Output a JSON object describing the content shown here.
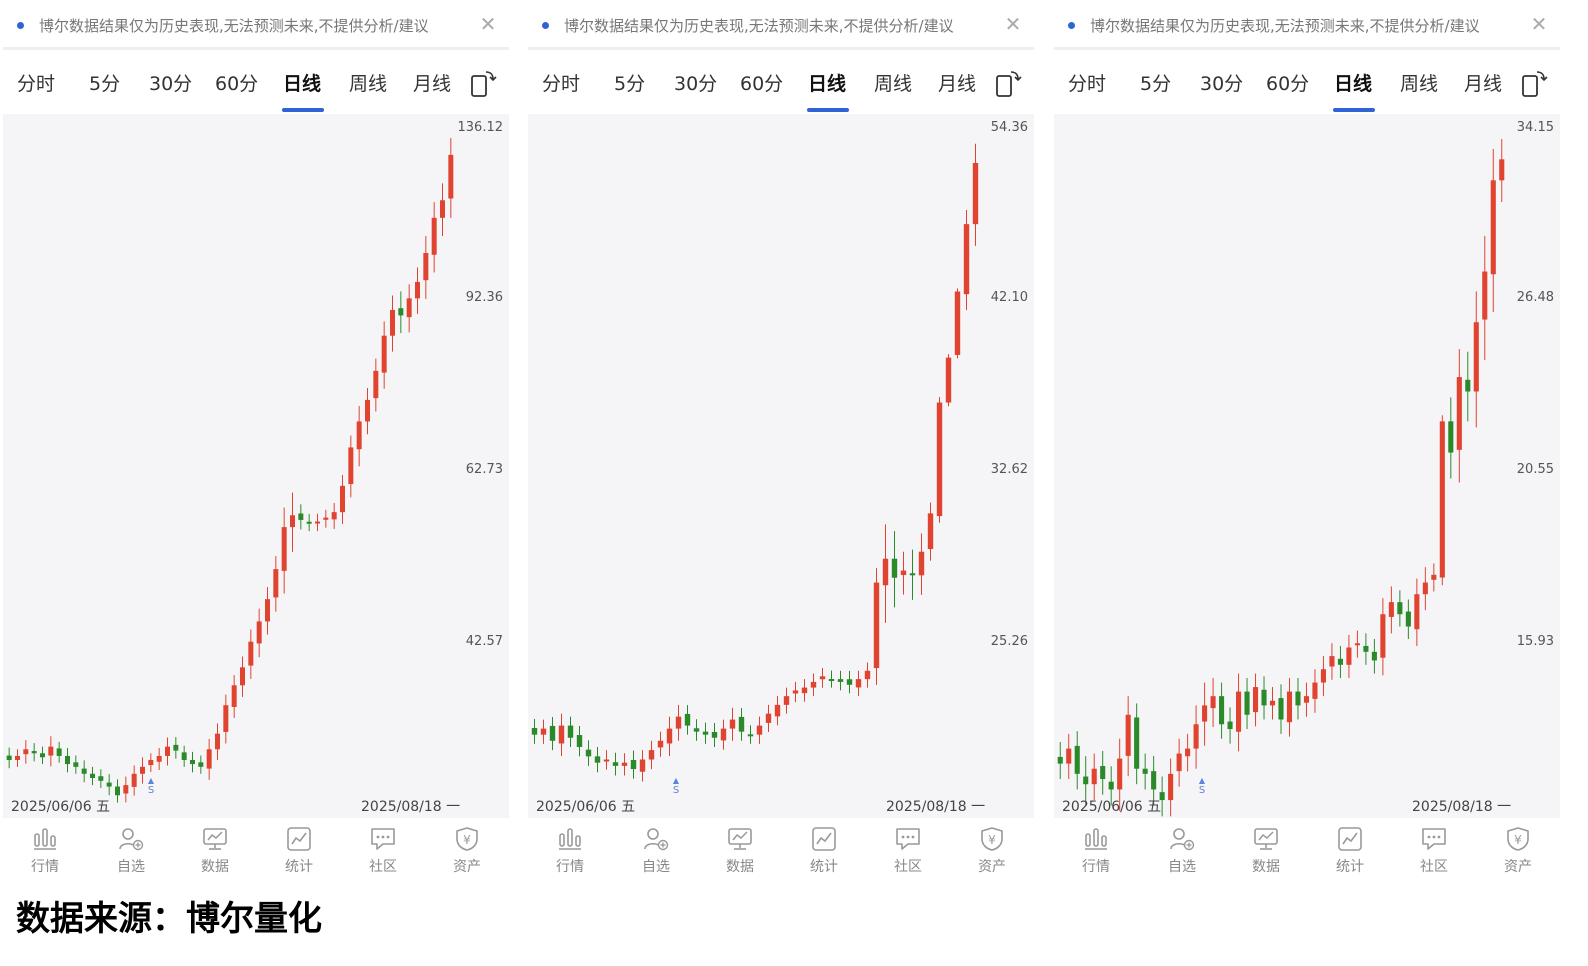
{
  "panels": [
    {
      "notice_text": "博尔数据结果仅为历史表现,无法预测未来,不提供分析/建议",
      "tabs": [
        "分时",
        "5分",
        "30分",
        "60分",
        "日线",
        "周线",
        "月线"
      ],
      "active_tab": "日线",
      "price_ticks": [
        "136.12",
        "92.36",
        "62.73",
        "42.57"
      ],
      "start_date": "2025/06/06 五",
      "end_date": "2025/08/18 一",
      "marker": "S",
      "nav": [
        "行情",
        "自选",
        "数据",
        "统计",
        "社区",
        "资产"
      ]
    },
    {
      "notice_text": "博尔数据结果仅为历史表现,无法预测未来,不提供分析/建议",
      "tabs": [
        "分时",
        "5分",
        "30分",
        "60分",
        "日线",
        "周线",
        "月线"
      ],
      "active_tab": "日线",
      "price_ticks": [
        "54.36",
        "42.10",
        "32.62",
        "25.26"
      ],
      "start_date": "2025/06/06 五",
      "end_date": "2025/08/18 一",
      "marker": "S",
      "nav": [
        "行情",
        "自选",
        "数据",
        "统计",
        "社区",
        "资产"
      ]
    },
    {
      "notice_text": "博尔数据结果仅为历史表现,无法预测未来,不提供分析/建议",
      "tabs": [
        "分时",
        "5分",
        "30分",
        "60分",
        "日线",
        "周线",
        "月线"
      ],
      "active_tab": "日线",
      "price_ticks": [
        "34.15",
        "26.48",
        "20.55",
        "15.93"
      ],
      "start_date": "2025/06/06 五",
      "end_date": "2025/08/18 一",
      "marker": "S",
      "nav": [
        "行情",
        "自选",
        "数据",
        "统计",
        "社区",
        "资产"
      ]
    }
  ],
  "source_text": "数据来源：博尔量化",
  "colors": {
    "up": "#e0432f",
    "down": "#2a8a2a",
    "accent": "#2f63d6"
  },
  "icons": [
    "close-icon",
    "rotate-screen-icon",
    "market-bars-icon",
    "watchlist-user-icon",
    "data-monitor-icon",
    "stats-chart-icon",
    "community-chat-icon",
    "assets-yuan-icon"
  ],
  "chart_data": [
    {
      "type": "candlestick",
      "scale": "log",
      "y_ticks": [
        136.12,
        92.36,
        62.73,
        42.57
      ],
      "x_range": [
        "2025/06/06",
        "2025/08/18"
      ],
      "close": [
        32.6,
        32.9,
        33.4,
        33.1,
        32.8,
        33.6,
        32.9,
        32.3,
        32.1,
        31.6,
        31.3,
        31.1,
        30.7,
        30.1,
        30.8,
        31.6,
        32.1,
        32.6,
        32.9,
        33.6,
        33.3,
        32.6,
        32.3,
        32.1,
        33.4,
        34.6,
        36.9,
        38.6,
        40.2,
        42.6,
        44.6,
        46.9,
        50.2,
        55.2,
        56.7,
        56.1,
        55.7,
        55.9,
        56.4,
        57.1,
        60.6,
        66.1,
        70.1,
        73.6,
        78.6,
        85.1,
        90.2,
        89.1,
        92.6,
        96.1,
        102.6,
        111.1,
        115.6,
        128.1
      ],
      "volatility": [
        0.6,
        0.5,
        0.7,
        0.6,
        0.5,
        0.8,
        0.5,
        0.6,
        0.5,
        0.6,
        0.5,
        0.5,
        0.6,
        0.5,
        0.6,
        0.6,
        0.7,
        0.5,
        0.6,
        0.7,
        0.6,
        0.5,
        0.6,
        0.5,
        0.8,
        0.8,
        0.9,
        0.9,
        1.0,
        1.2,
        1.3,
        1.3,
        1.5,
        2.5,
        3.0,
        1.2,
        1.0,
        1.0,
        1.0,
        1.2,
        1.5,
        1.8,
        2.5,
        2.0,
        2.2,
        2.8,
        3.0,
        3.5,
        3.0,
        3.2,
        4.0,
        4.0,
        4.5,
        5.0
      ]
    },
    {
      "type": "candlestick",
      "scale": "log",
      "y_ticks": [
        54.36,
        42.1,
        32.62,
        25.26
      ],
      "x_range": [
        "2025/06/06",
        "2025/08/18"
      ],
      "close": [
        22.0,
        22.2,
        21.8,
        22.3,
        21.9,
        21.6,
        21.3,
        21.1,
        21.2,
        21.0,
        21.1,
        20.9,
        21.2,
        21.5,
        21.8,
        22.2,
        22.6,
        22.3,
        22.1,
        22.0,
        21.9,
        22.2,
        22.5,
        22.1,
        22.0,
        22.3,
        22.7,
        23.0,
        23.3,
        23.5,
        23.6,
        23.8,
        24.0,
        23.9,
        23.8,
        23.7,
        23.9,
        24.2,
        27.6,
        28.6,
        27.8,
        28.1,
        27.9,
        28.9,
        30.6,
        36.1,
        38.6,
        42.6,
        47.1,
        51.6
      ],
      "volatility": [
        0.3,
        0.3,
        0.3,
        0.4,
        0.3,
        0.3,
        0.3,
        0.3,
        0.3,
        0.3,
        0.3,
        0.3,
        0.3,
        0.3,
        0.3,
        0.4,
        0.4,
        0.3,
        0.3,
        0.3,
        0.3,
        0.3,
        0.4,
        0.3,
        0.3,
        0.3,
        0.3,
        0.3,
        0.3,
        0.3,
        0.3,
        0.3,
        0.3,
        0.3,
        0.3,
        0.3,
        0.3,
        0.3,
        0.6,
        1.5,
        1.2,
        0.8,
        1.0,
        0.8,
        0.5,
        0.3,
        0.2,
        0.2,
        1.0,
        1.5
      ]
    },
    {
      "type": "candlestick",
      "scale": "log",
      "y_ticks": [
        34.15,
        26.48,
        20.55,
        15.93
      ],
      "x_range": [
        "2025/06/06",
        "2025/08/18"
      ],
      "close": [
        13.3,
        13.6,
        13.1,
        12.9,
        13.2,
        13.0,
        12.8,
        13.4,
        14.3,
        13.2,
        13.1,
        12.8,
        12.6,
        13.1,
        13.5,
        13.6,
        14.1,
        14.5,
        14.7,
        14.1,
        14.0,
        14.8,
        14.3,
        14.9,
        14.5,
        14.6,
        14.2,
        14.8,
        14.5,
        14.7,
        15.0,
        15.3,
        15.6,
        15.4,
        15.8,
        15.9,
        15.7,
        15.5,
        16.6,
        16.9,
        16.6,
        16.3,
        17.1,
        17.4,
        17.6,
        22.1,
        21.1,
        23.6,
        23.1,
        25.6,
        27.6,
        31.6,
        32.6
      ],
      "volatility": [
        0.3,
        0.3,
        0.3,
        0.4,
        0.3,
        0.3,
        0.3,
        0.4,
        0.4,
        0.3,
        0.3,
        0.3,
        0.3,
        0.3,
        0.3,
        0.3,
        0.4,
        0.5,
        0.4,
        0.3,
        0.3,
        0.4,
        0.3,
        0.3,
        0.3,
        0.3,
        0.3,
        0.3,
        0.3,
        0.3,
        0.3,
        0.3,
        0.3,
        0.3,
        0.3,
        0.3,
        0.3,
        0.3,
        0.4,
        0.4,
        0.3,
        0.3,
        0.4,
        0.4,
        0.3,
        0.2,
        0.8,
        1.0,
        1.0,
        1.2,
        1.5,
        1.5,
        1.0
      ]
    }
  ]
}
